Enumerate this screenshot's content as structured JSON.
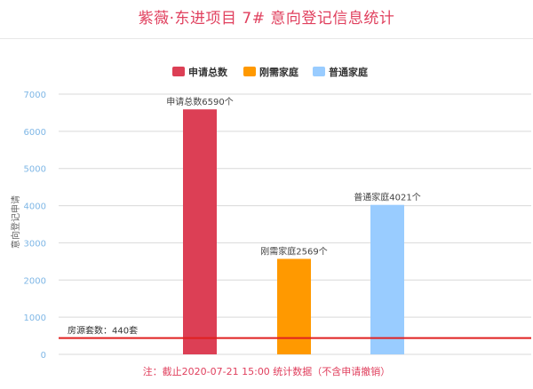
{
  "page": {
    "title": "紫薇·东进项目 7# 意向登记信息统计",
    "footnote": "注：截止2020-07-21 15:00 统计数据（不含申请撤销）"
  },
  "colors": {
    "title": "#e0405e",
    "axis_tick_text": "#7fb7e6",
    "grid": "#d9d9d9",
    "reference_line": "#e02020"
  },
  "chart_data": {
    "type": "bar",
    "title": "紫薇·东进项目 7# 意向登记信息统计",
    "xlabel": "",
    "ylabel": "意向登记申请",
    "ylim": [
      0,
      7000
    ],
    "yticks": [
      0,
      1000,
      2000,
      3000,
      4000,
      5000,
      6000,
      7000
    ],
    "grid": true,
    "legend_position": "top",
    "series": [
      {
        "name": "申请总数",
        "color": "#dc3f55",
        "value": 6590,
        "label": "申请总数6590个"
      },
      {
        "name": "刚需家庭",
        "color": "#ff9900",
        "value": 2569,
        "label": "刚需家庭2569个"
      },
      {
        "name": "普通家庭",
        "color": "#99ccff",
        "value": 4021,
        "label": "普通家庭4021个"
      }
    ],
    "reference_line": {
      "value": 440,
      "label": "房源套数：440套",
      "color": "#e02020"
    }
  }
}
